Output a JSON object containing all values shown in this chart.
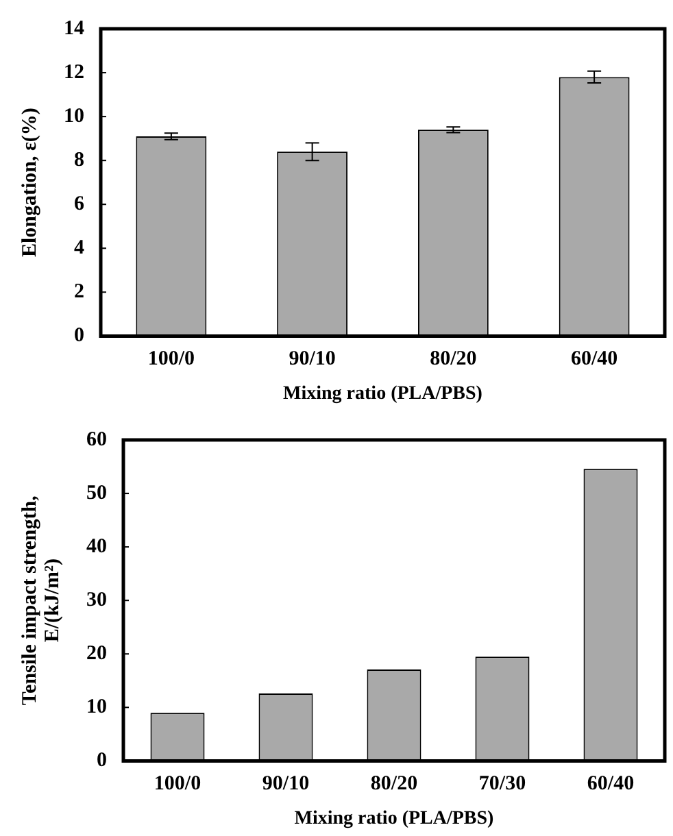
{
  "chart_data": [
    {
      "type": "bar",
      "xlabel": "Mixing ratio (PLA/PBS)",
      "ylabel": "Elongation, ε(%)",
      "categories": [
        "100/0",
        "90/10",
        "80/20",
        "60/40"
      ],
      "values": [
        9.1,
        8.4,
        9.4,
        11.8
      ],
      "errors": [
        0.15,
        0.4,
        0.13,
        0.27
      ],
      "color": "#a9a9a9",
      "ylim": [
        0,
        14
      ],
      "yticks": [
        0,
        2,
        4,
        6,
        8,
        10,
        12,
        14
      ],
      "grid": false,
      "legend": false
    },
    {
      "type": "bar",
      "xlabel": "Mixing ratio (PLA/PBS)",
      "ylabel": "Tensile impact strength,\nE/(kJ/m²)",
      "categories": [
        "100/0",
        "90/10",
        "80/20",
        "70/30",
        "60/40"
      ],
      "values": [
        9,
        12.6,
        17.1,
        19.5,
        54.6
      ],
      "color": "#a9a9a9",
      "ylim": [
        0,
        60
      ],
      "yticks": [
        0,
        10,
        20,
        30,
        40,
        50,
        60
      ],
      "grid": false,
      "legend": false
    }
  ]
}
